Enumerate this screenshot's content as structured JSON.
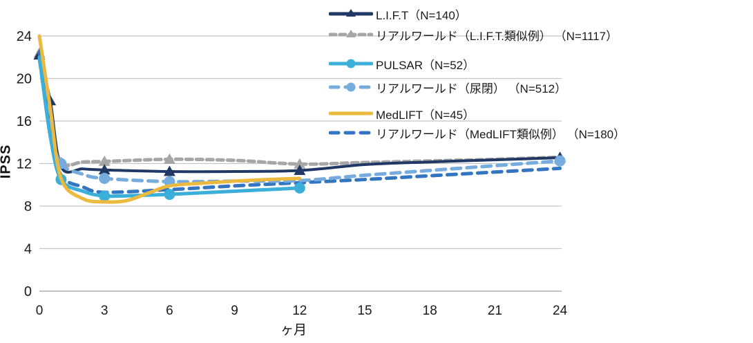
{
  "chart_data": {
    "type": "line",
    "title": "",
    "xlabel": "ヶ月",
    "ylabel": "IPSS",
    "xlim": [
      0,
      24
    ],
    "ylim": [
      0,
      24
    ],
    "xticks": [
      0,
      3,
      6,
      9,
      12,
      15,
      18,
      21,
      24
    ],
    "yticks": [
      0,
      4,
      8,
      12,
      16,
      20,
      24
    ],
    "grid": "horizontal",
    "legend_position": "top-right",
    "series": [
      {
        "name": "L.I.F.T（N=140）",
        "color": "#1F3864",
        "style": "solid",
        "marker": "triangle",
        "marker_months": [
          0,
          0.5,
          3,
          6,
          12,
          24
        ],
        "points": [
          [
            0,
            22.2
          ],
          [
            0.5,
            17.9
          ],
          [
            1,
            11.7
          ],
          [
            2,
            11.5
          ],
          [
            3,
            11.4
          ],
          [
            6,
            11.25
          ],
          [
            9,
            11.25
          ],
          [
            12,
            11.35
          ],
          [
            15,
            11.9
          ],
          [
            18,
            12.15
          ],
          [
            21,
            12.35
          ],
          [
            24,
            12.55
          ]
        ]
      },
      {
        "name": "リアルワールド（L.I.F.T.類似例） （N=1117）",
        "color": "#A6A6A6",
        "style": "dashed",
        "marker": "triangle",
        "marker_months": [
          0,
          1,
          3,
          6,
          12,
          24
        ],
        "points": [
          [
            0,
            22.4
          ],
          [
            0.5,
            16.2
          ],
          [
            1,
            12.1
          ],
          [
            2,
            12.15
          ],
          [
            3,
            12.2
          ],
          [
            6,
            12.4
          ],
          [
            9,
            12.3
          ],
          [
            12,
            11.95
          ],
          [
            15,
            12.1
          ],
          [
            18,
            12.25
          ],
          [
            21,
            12.4
          ],
          [
            24,
            12.6
          ]
        ]
      },
      {
        "name": "PULSAR（N=52）",
        "color": "#3BAFDA",
        "style": "solid",
        "marker": "circle",
        "marker_months": [
          1,
          3,
          6,
          12
        ],
        "points": [
          [
            0,
            22.0
          ],
          [
            0.5,
            14.6
          ],
          [
            1,
            10.5
          ],
          [
            2,
            9.4
          ],
          [
            3,
            8.95
          ],
          [
            4.5,
            9.0
          ],
          [
            6,
            9.1
          ],
          [
            9,
            9.4
          ],
          [
            12,
            9.7
          ]
        ]
      },
      {
        "name": "リアルワールド（尿閉） （N=512）",
        "color": "#76ABDD",
        "style": "dashed",
        "marker": "circle",
        "marker_months": [
          1,
          3,
          6,
          24
        ],
        "points": [
          [
            0,
            21.8
          ],
          [
            0.5,
            15.2
          ],
          [
            1,
            12.0
          ],
          [
            2,
            11.0
          ],
          [
            3,
            10.6
          ],
          [
            6,
            10.3
          ],
          [
            9,
            10.35
          ],
          [
            12,
            10.4
          ],
          [
            15,
            10.9
          ],
          [
            18,
            11.35
          ],
          [
            21,
            11.8
          ],
          [
            24,
            12.25
          ]
        ]
      },
      {
        "name": "MedLIFT（N=45）",
        "color": "#ECB93F",
        "style": "solid",
        "marker": "none",
        "marker_months": [],
        "points": [
          [
            0,
            24
          ],
          [
            0.5,
            17.2
          ],
          [
            1,
            10.6
          ],
          [
            2,
            8.7
          ],
          [
            3,
            8.4
          ],
          [
            4,
            8.5
          ],
          [
            5,
            9.2
          ],
          [
            6,
            9.9
          ],
          [
            7.5,
            10.15
          ],
          [
            9,
            10.35
          ],
          [
            10.5,
            10.5
          ],
          [
            12,
            10.6
          ]
        ]
      },
      {
        "name": "リアルワールド（MedLIFT類似例） （N=180）",
        "color": "#3376BF",
        "style": "dashed",
        "marker": "none",
        "marker_months": [],
        "points": [
          [
            0,
            22.5
          ],
          [
            0.5,
            15.0
          ],
          [
            1,
            10.9
          ],
          [
            2,
            9.8
          ],
          [
            3,
            9.3
          ],
          [
            6,
            9.55
          ],
          [
            9,
            9.9
          ],
          [
            12,
            10.2
          ],
          [
            15,
            10.5
          ],
          [
            18,
            10.85
          ],
          [
            21,
            11.2
          ],
          [
            24,
            11.55
          ]
        ]
      }
    ]
  }
}
